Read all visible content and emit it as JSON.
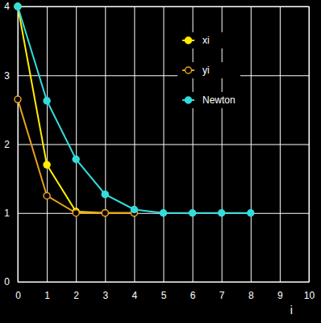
{
  "chart_data": {
    "type": "line",
    "x_label": "i",
    "x": [
      0,
      1,
      2,
      3,
      4,
      5,
      6,
      7,
      8
    ],
    "series": [
      {
        "name": "xi",
        "color": "#ffee00",
        "marker": "circle",
        "line_style": "solid",
        "values": [
          4,
          1.7,
          1.02,
          1.0,
          1.0,
          null,
          null,
          null,
          null
        ]
      },
      {
        "name": "yi",
        "color": "#e8a020",
        "marker": "open-circle",
        "line_style": "solid",
        "values": [
          2.65,
          1.25,
          1.0,
          1.0,
          1.0,
          null,
          null,
          null,
          null
        ]
      },
      {
        "name": "Newton",
        "color": "#33dddd",
        "marker": "circle",
        "line_style": "solid",
        "values": [
          4,
          2.63,
          1.78,
          1.27,
          1.05,
          1.0,
          1.0,
          1.0,
          1.0
        ]
      }
    ],
    "xlim": [
      0,
      10
    ],
    "xticks": [
      0,
      1,
      2,
      3,
      4,
      5,
      6,
      7,
      8,
      9,
      10
    ],
    "ylim": [
      0,
      4
    ],
    "yticks": [
      0,
      1,
      2,
      3,
      4
    ],
    "grid": true,
    "legend": "top-right"
  }
}
